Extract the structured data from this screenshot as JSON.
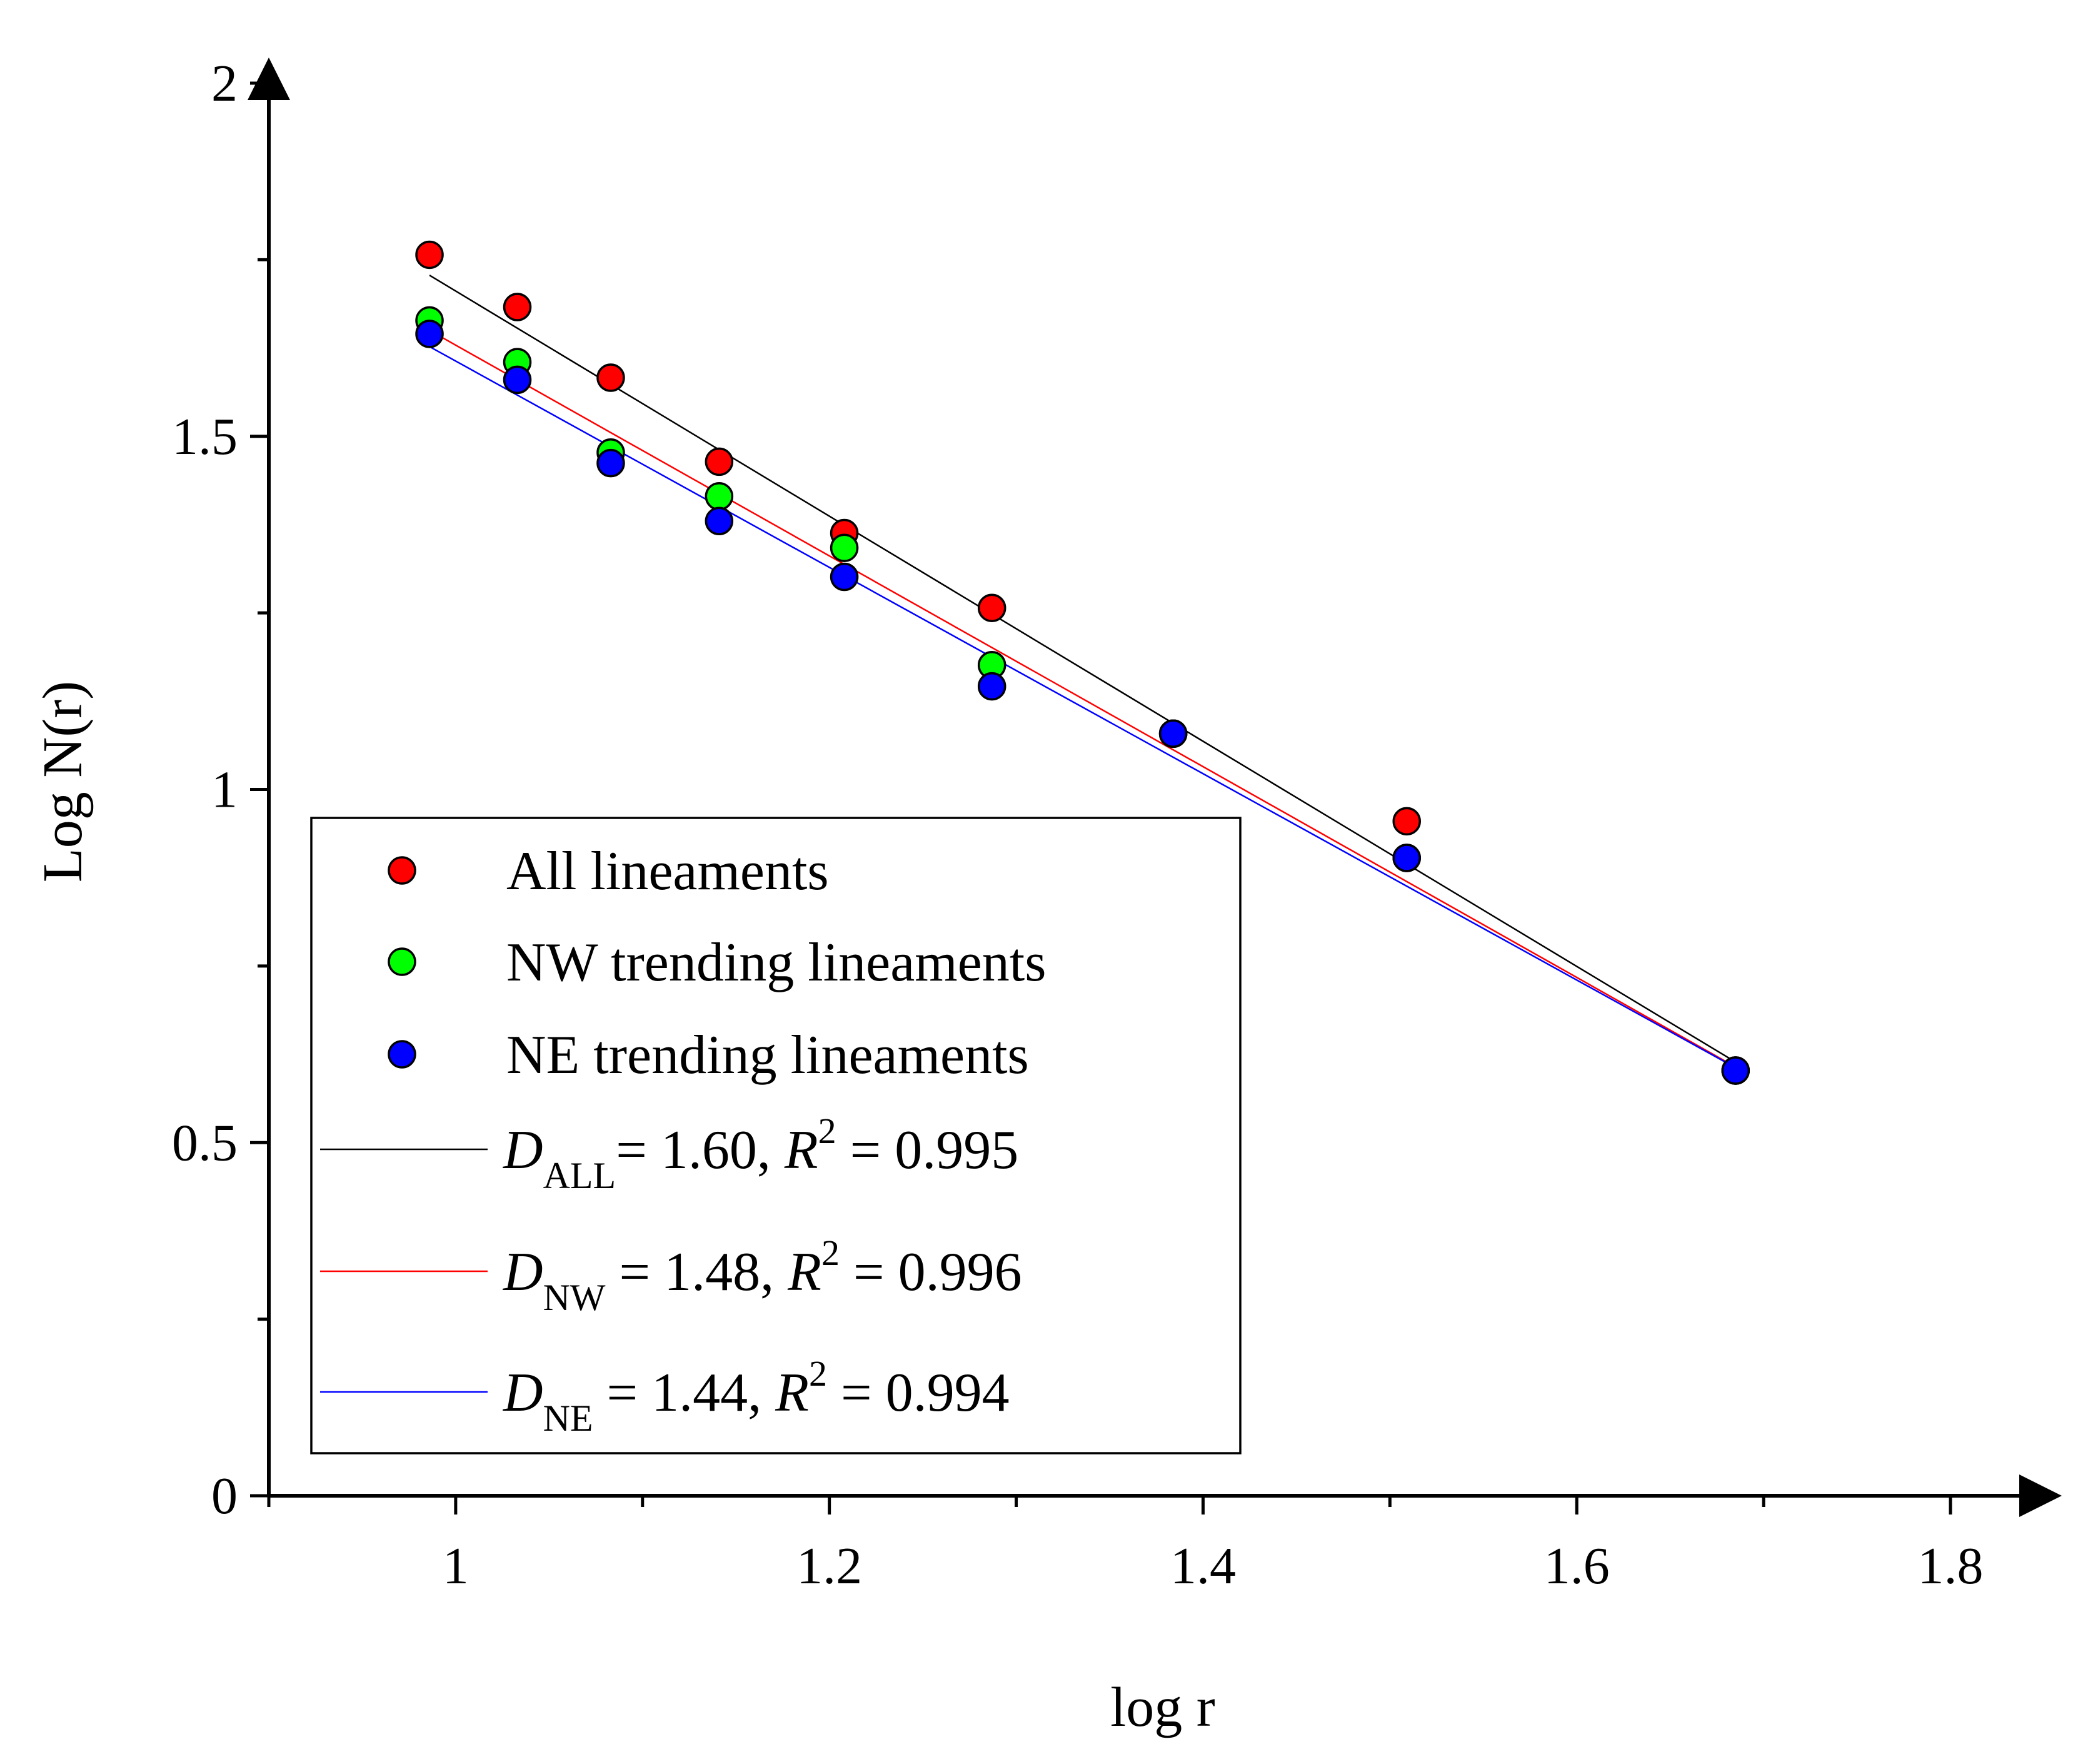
{
  "chart_data": {
    "type": "scatter",
    "title": "",
    "xlabel": "log r",
    "ylabel": "Log N(r)",
    "xlim": [
      0.9,
      1.8
    ],
    "ylim": [
      0,
      2
    ],
    "x_ticks": [
      1,
      1.2,
      1.4,
      1.6,
      1.8
    ],
    "x_tick_labels": [
      "1",
      "1.2",
      "1.4",
      "1.6",
      "1.8"
    ],
    "y_ticks": [
      0,
      0.5,
      1,
      1.5,
      2
    ],
    "y_tick_labels": [
      "0",
      "0.5",
      "1",
      "1.5",
      "2"
    ],
    "legend_position": "bottom-left",
    "series": [
      {
        "name": "All lineaments",
        "color": "#ff0000",
        "x": [
          0.986,
          1.033,
          1.083,
          1.141,
          1.208,
          1.287,
          1.384,
          1.509,
          1.685
        ],
        "y": [
          1.757,
          1.683,
          1.583,
          1.464,
          1.363,
          1.257,
          1.079,
          0.955,
          0.602
        ]
      },
      {
        "name": "NW trending lineaments",
        "color": "#00ff00",
        "x": [
          0.986,
          1.033,
          1.083,
          1.141,
          1.208,
          1.287,
          1.384,
          1.509,
          1.685
        ],
        "y": [
          1.664,
          1.605,
          1.477,
          1.415,
          1.342,
          1.176,
          1.079,
          0.903,
          0.602
        ]
      },
      {
        "name": "NE trending lineaments",
        "color": "#0000ff",
        "x": [
          0.986,
          1.033,
          1.083,
          1.141,
          1.208,
          1.287,
          1.384,
          1.509,
          1.685
        ],
        "y": [
          1.645,
          1.58,
          1.462,
          1.38,
          1.301,
          1.146,
          1.079,
          0.903,
          0.602
        ]
      }
    ],
    "fits": [
      {
        "symbol": "D",
        "subscript": "ALL",
        "text": "= 1.60, ",
        "r2_symbol": "R",
        "r2_sup": "2",
        "r2_text": " = 0.995",
        "color": "#000000",
        "x": [
          0.986,
          1.685
        ],
        "y": [
          1.728,
          0.614
        ]
      },
      {
        "symbol": "D",
        "subscript": "NW",
        "text": " = 1.48, ",
        "r2_symbol": "R",
        "r2_sup": "2",
        "r2_text": " = 0.996",
        "color": "#ff0000",
        "x": [
          0.986,
          1.685
        ],
        "y": [
          1.65,
          0.607
        ]
      },
      {
        "symbol": "D",
        "subscript": "NE",
        "text": "  = 1.44, ",
        "r2_symbol": "R",
        "r2_sup": "2",
        "r2_text": " = 0.994",
        "color": "#0000ff",
        "x": [
          0.986,
          1.685
        ],
        "y": [
          1.627,
          0.606
        ]
      }
    ]
  }
}
